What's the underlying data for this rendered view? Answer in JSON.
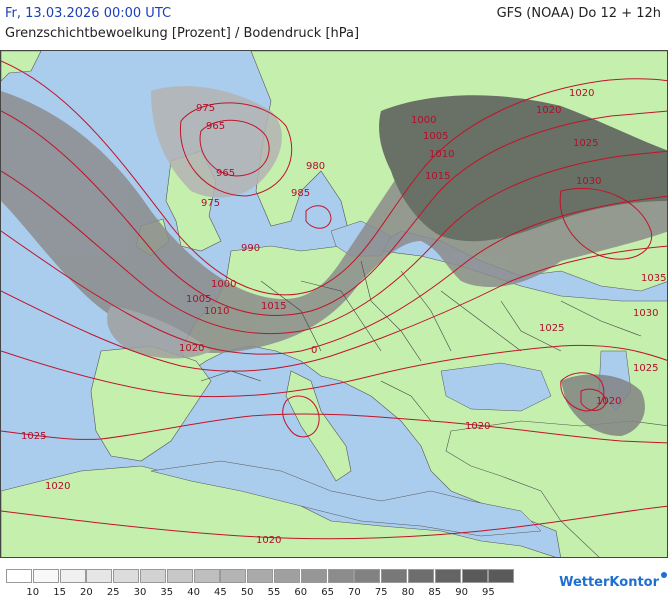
{
  "header": {
    "date": "Fr, 13.03.2026 00:00 UTC",
    "subtitle": "Grenzschichtbewoelkung [Prozent] / Bodendruck [hPa]",
    "model": "GFS (NOAA) Do 12 + 12h"
  },
  "colors": {
    "sea": "#aacdee",
    "land": "#c4efad",
    "isobar": "#c0142a",
    "border": "#444444"
  },
  "legend": {
    "labels": [
      "10",
      "15",
      "20",
      "25",
      "30",
      "35",
      "40",
      "45",
      "50",
      "55",
      "60",
      "65",
      "70",
      "75",
      "80",
      "85",
      "90",
      "95"
    ],
    "colors": [
      "#ffffff",
      "#f8f8f8",
      "#f0f0f0",
      "#e6e6e6",
      "#dcdcdc",
      "#d2d2d2",
      "#c8c8c8",
      "#bebebe",
      "#b4b4b4",
      "#aaaaaa",
      "#a0a0a0",
      "#969696",
      "#8c8c8c",
      "#828282",
      "#787878",
      "#6e6e6e",
      "#646464",
      "#5a5a5a"
    ]
  },
  "isobar_labels": [
    {
      "text": "975"
    },
    {
      "text": "965"
    },
    {
      "text": "965"
    },
    {
      "text": "975"
    },
    {
      "text": "980"
    },
    {
      "text": "985"
    },
    {
      "text": "990"
    },
    {
      "text": "1000"
    },
    {
      "text": "1005"
    },
    {
      "text": "1010"
    },
    {
      "text": "1015"
    },
    {
      "text": "1020"
    },
    {
      "text": "1000"
    },
    {
      "text": "1005"
    },
    {
      "text": "1010"
    },
    {
      "text": "1015"
    },
    {
      "text": "1020"
    },
    {
      "text": "1020"
    },
    {
      "text": "1025"
    },
    {
      "text": "1030"
    },
    {
      "text": "1035"
    },
    {
      "text": "1030"
    },
    {
      "text": "1025"
    },
    {
      "text": "1025"
    },
    {
      "text": "1020"
    },
    {
      "text": "1020"
    },
    {
      "text": "1025"
    },
    {
      "text": "1020"
    },
    {
      "text": "1020"
    },
    {
      "text": "0"
    }
  ],
  "logo": {
    "text": "WetterKontor"
  }
}
